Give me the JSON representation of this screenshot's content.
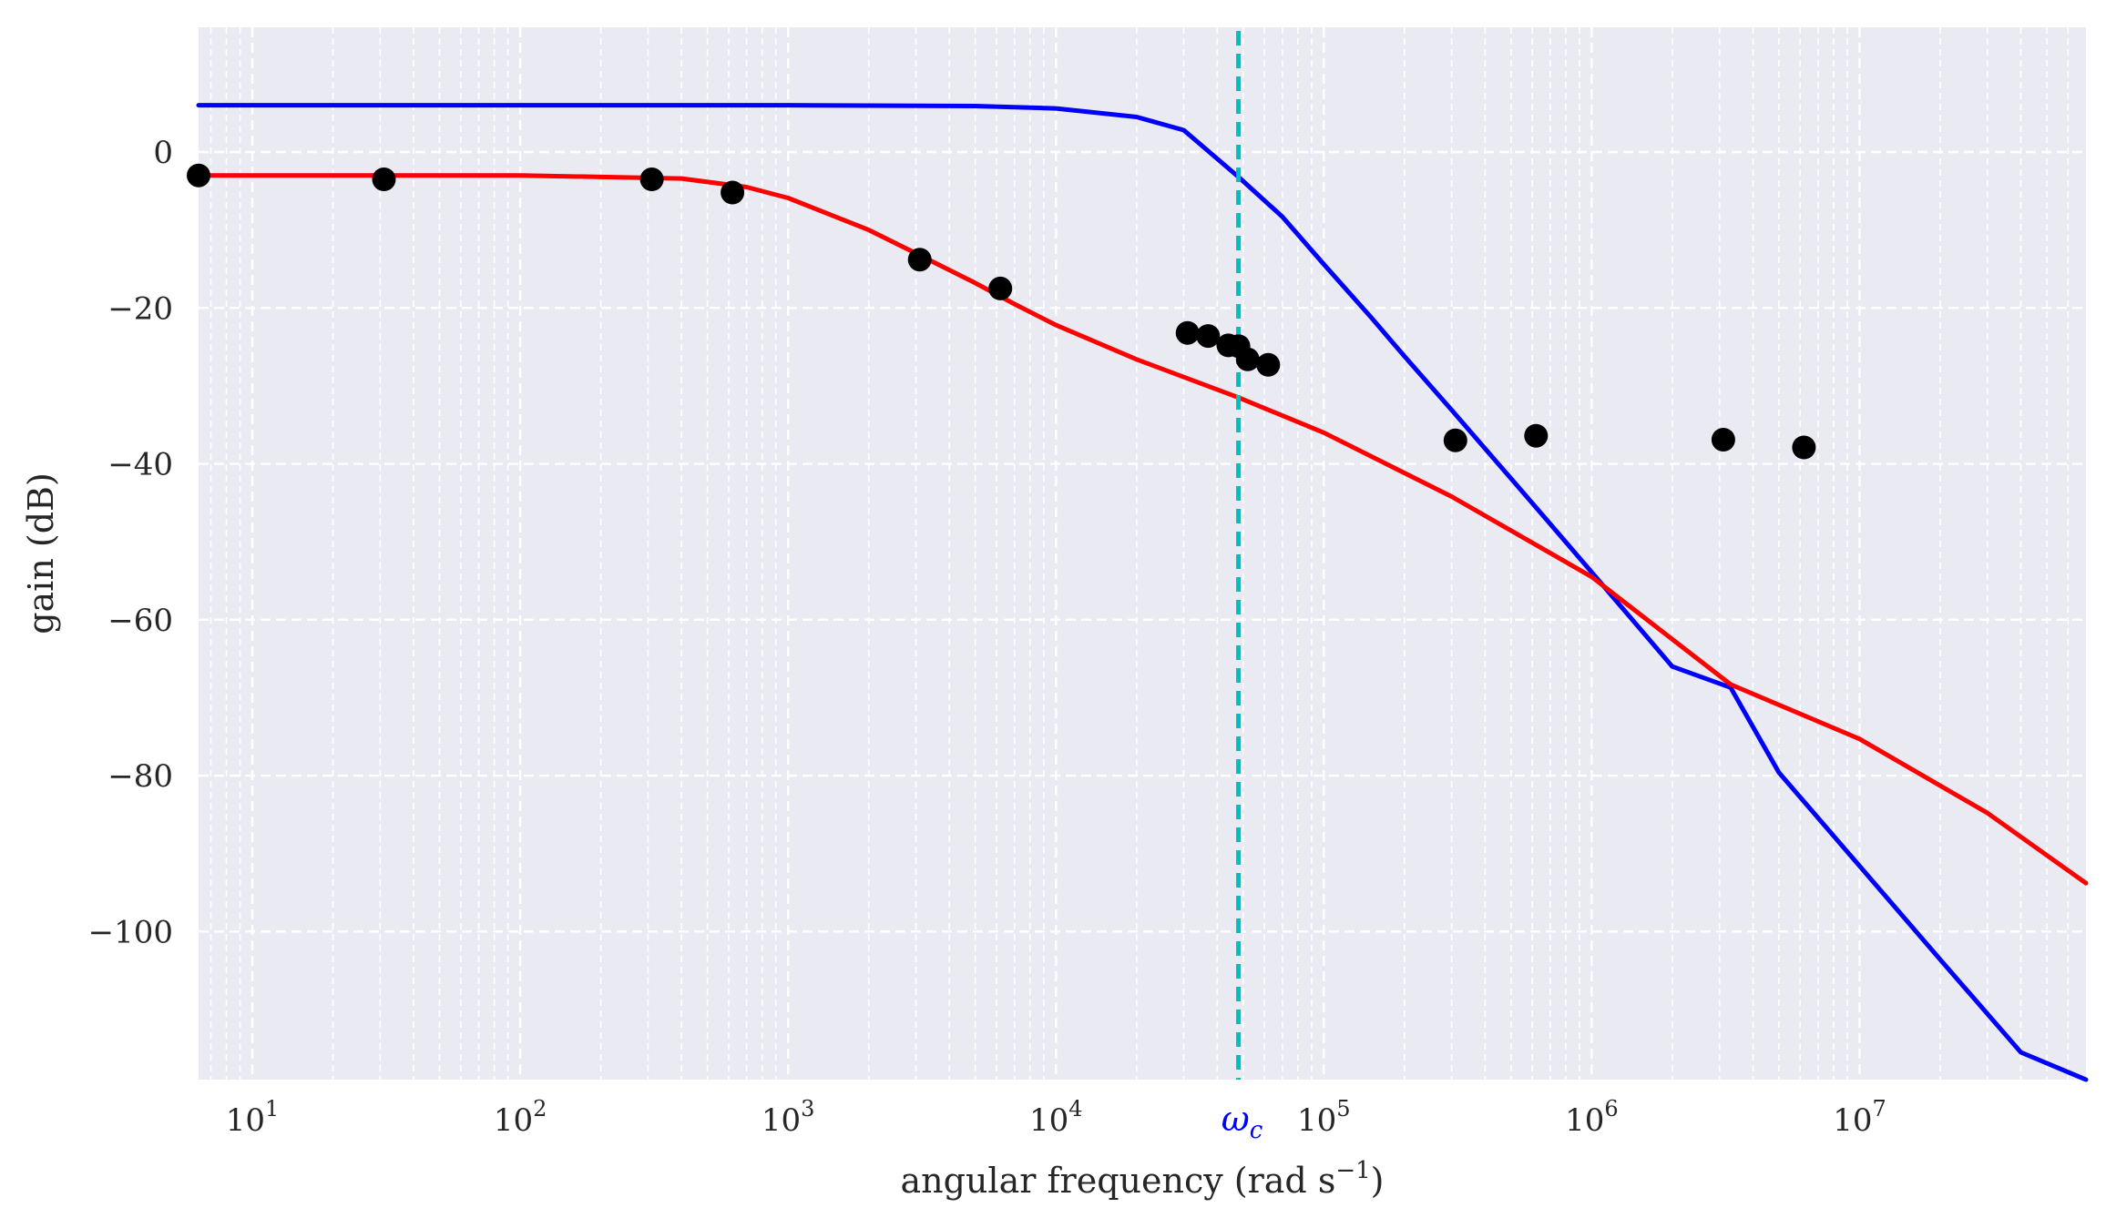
{
  "chart_data": {
    "type": "line",
    "title": "",
    "xlabel": "angular frequency (rad s",
    "xlabel_sup": "−1",
    "xlabel_close": ")",
    "ylabel": "gain (dB)",
    "xscale": "log",
    "xlim": [
      6.3,
      70000000
    ],
    "ylim": [
      -119,
      16
    ],
    "grid": true,
    "grid_style": "dashed",
    "background": "#eaeaf2",
    "x_ticks": [
      {
        "value": 10,
        "base": "10",
        "exp": "1"
      },
      {
        "value": 100,
        "base": "10",
        "exp": "2"
      },
      {
        "value": 1000,
        "base": "10",
        "exp": "3"
      },
      {
        "value": 10000,
        "base": "10",
        "exp": "4"
      },
      {
        "value": 100000,
        "base": "10",
        "exp": "5"
      },
      {
        "value": 1000000,
        "base": "10",
        "exp": "6"
      },
      {
        "value": 10000000,
        "base": "10",
        "exp": "7"
      }
    ],
    "y_ticks": [
      {
        "value": 0,
        "label": "0"
      },
      {
        "value": -20,
        "label": "−20"
      },
      {
        "value": -40,
        "label": "−40"
      },
      {
        "value": -60,
        "label": "−60"
      },
      {
        "value": -80,
        "label": "−80"
      },
      {
        "value": -100,
        "label": "−100"
      }
    ],
    "series": [
      {
        "kind": "line",
        "color": "#0000ff",
        "x": [
          6.3,
          100,
          1000,
          5000,
          10000,
          20000,
          30000,
          48000,
          70000,
          100000,
          150000,
          200000,
          300000,
          500000,
          700000,
          1000000,
          2000000,
          3300000,
          5000000,
          10000000,
          20000000,
          40000000,
          70000000
        ],
        "y": [
          6,
          6,
          6,
          5.9,
          5.6,
          4.5,
          2.8,
          -3.2,
          -8.3,
          -14.4,
          -21.2,
          -26.2,
          -33.1,
          -41.9,
          -47.7,
          -53.9,
          -66.0,
          -68.7,
          -79.6,
          -91.6,
          -103.6,
          -115.5,
          -119.0
        ]
      },
      {
        "kind": "line",
        "color": "#ff0000",
        "x": [
          6.3,
          100,
          400,
          700,
          1000,
          2000,
          3000,
          5000,
          7000,
          10000,
          20000,
          48000,
          100000,
          300000,
          1000000,
          3300000,
          10000000,
          30000000,
          70000000
        ],
        "y": [
          -3.0,
          -3.0,
          -3.4,
          -4.5,
          -5.9,
          -10.0,
          -13.0,
          -16.8,
          -19.5,
          -22.2,
          -26.6,
          -31.5,
          -36.0,
          -44.2,
          -54.5,
          -68.3,
          -75.3,
          -84.8,
          -93.8
        ]
      },
      {
        "kind": "scatter",
        "color": "#000000",
        "x": [
          6.3,
          31,
          310,
          620,
          3100,
          6200,
          31000,
          37000,
          44000,
          48000,
          52000,
          62000,
          310000,
          620000,
          3100000,
          6200000
        ],
        "y": [
          -3.0,
          -3.5,
          -3.5,
          -5.2,
          -13.8,
          -17.5,
          -23.2,
          -23.6,
          -24.8,
          -24.9,
          -26.6,
          -27.3,
          -37.0,
          -36.4,
          -36.9,
          -37.9
        ]
      }
    ],
    "vline": {
      "x": 48000,
      "color": "#00bfbf",
      "style": "dashed",
      "label": "ω",
      "label_sub": "c",
      "label_color": "#0000ff"
    }
  }
}
